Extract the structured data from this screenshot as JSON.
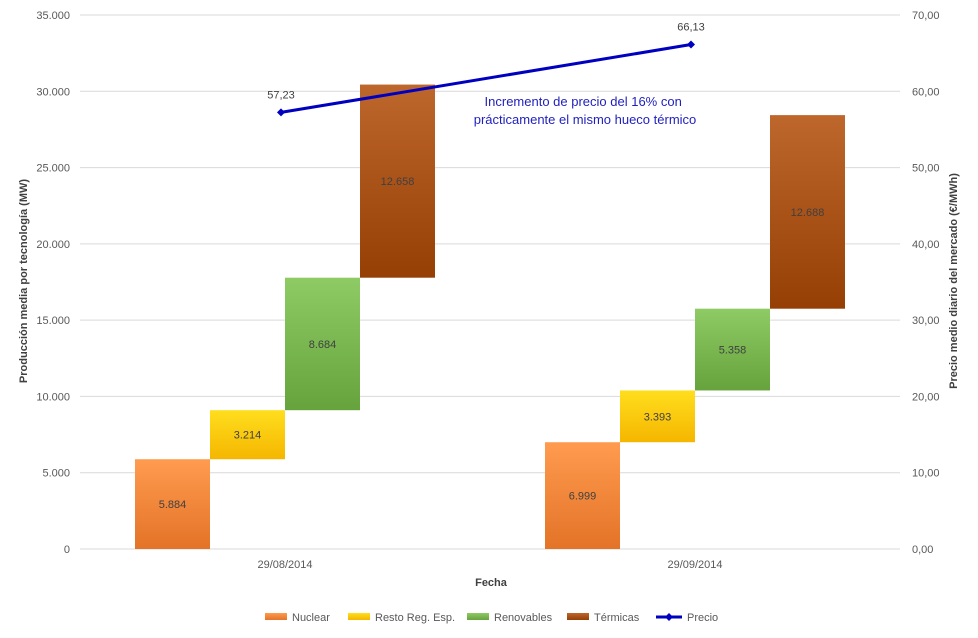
{
  "chart_data": {
    "type": "bar",
    "chart_style": "stacked floating bars (waterfall) with secondary-axis line",
    "categories": [
      "29/08/2014",
      "29/09/2014"
    ],
    "xlabel": "Fecha",
    "ylabel": "Producción media por tecnología (MW)",
    "y2label": "Precio medio diario del mercado (€/MWh)",
    "ylim": [
      0,
      35000
    ],
    "y2lim": [
      0,
      70
    ],
    "yticks": [
      "0",
      "5.000",
      "10.000",
      "15.000",
      "20.000",
      "25.000",
      "30.000",
      "35.000"
    ],
    "y2ticks": [
      "0,00",
      "10,00",
      "20,00",
      "30,00",
      "40,00",
      "50,00",
      "60,00",
      "70,00"
    ],
    "grid": true,
    "legend_position": "bottom",
    "series": [
      {
        "name": "Nuclear",
        "color": "#ED7D31",
        "values": [
          5884,
          6999
        ],
        "labels": [
          "5.884",
          "6.999"
        ]
      },
      {
        "name": "Resto Reg. Esp.",
        "color": "#FFC000",
        "values": [
          3214,
          3393
        ],
        "labels": [
          "3.214",
          "3.393"
        ]
      },
      {
        "name": "Renovables",
        "color": "#70AD47",
        "values": [
          8684,
          5358
        ],
        "labels": [
          "8.684",
          "5.358"
        ]
      },
      {
        "name": "Térmicas",
        "color": "#A0490F",
        "values": [
          12658,
          12688
        ],
        "labels": [
          "12.658",
          "12.688"
        ]
      }
    ],
    "line_series": {
      "name": "Precio",
      "color": "#0000C0",
      "axis": "secondary",
      "values": [
        57.23,
        66.13
      ],
      "labels": [
        "57,23",
        "66,13"
      ]
    },
    "annotation": [
      "Incremento de precio del 16% con",
      "prácticamente el mismo hueco térmico"
    ]
  }
}
